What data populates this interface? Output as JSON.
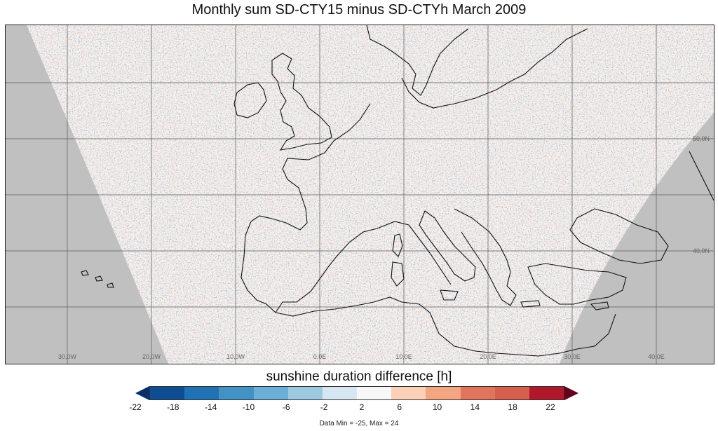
{
  "title": "Monthly sum SD-CTY15 minus SD-CTYh March 2009",
  "colorbar": {
    "title": "sunshine duration difference [h]",
    "ticks": [
      "-22",
      "-18",
      "-14",
      "-10",
      "-6",
      "-2",
      "2",
      "6",
      "10",
      "14",
      "18",
      "22"
    ],
    "colors": [
      "#08306b",
      "#0e4d92",
      "#2171b5",
      "#4292c6",
      "#6baed6",
      "#9ecae1",
      "#d6e6f2",
      "#f7f7f7",
      "#fbd0b9",
      "#f4a582",
      "#e0745d",
      "#d6604d",
      "#b2182b",
      "#67001f"
    ],
    "under_color": "#08306b",
    "over_color": "#67001f"
  },
  "data_range": "Data Min = -25, Max = 24",
  "map": {
    "longitude_labels": [
      "30,0W",
      "20,0W",
      "10,0W",
      "0,0E",
      "10,0E",
      "20,0E",
      "30,0E",
      "40,0E"
    ],
    "latitude_labels": [
      "50,0N",
      "40,0N"
    ],
    "no_data_color": "#c0c0c0",
    "grid": true
  }
}
